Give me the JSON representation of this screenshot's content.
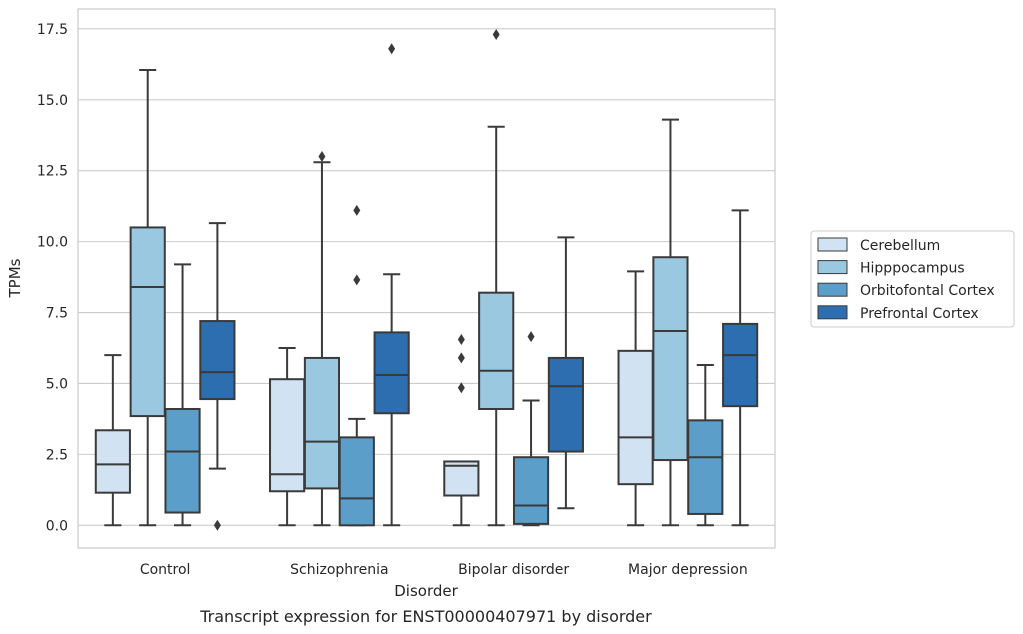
{
  "chart_data": {
    "type": "box",
    "xlabel": "Disorder",
    "ylabel": "TPMs",
    "caption": "Transcript expression for ENST00000407971 by disorder",
    "ylim": [
      -0.8,
      18.2
    ],
    "yticks": [
      "0.0",
      "2.5",
      "5.0",
      "7.5",
      "10.0",
      "12.5",
      "15.0",
      "17.5"
    ],
    "grid": "horizontal",
    "legend_position": "right",
    "categories": [
      "Control",
      "Schizophrenia",
      "Bipolar disorder",
      "Major depression"
    ],
    "series": [
      {
        "name": "Cerebellum",
        "color": "#d1e2f2",
        "boxes": [
          {
            "min": 0.0,
            "q1": 1.15,
            "median": 2.15,
            "q3": 3.35,
            "max": 6.0,
            "outliers": []
          },
          {
            "min": 0.0,
            "q1": 1.2,
            "median": 1.8,
            "q3": 5.15,
            "max": 6.25,
            "outliers": []
          },
          {
            "min": 0.0,
            "q1": 1.05,
            "median": 2.1,
            "q3": 2.25,
            "max": 2.25,
            "outliers": [
              4.85,
              5.9,
              6.55
            ]
          },
          {
            "min": 0.0,
            "q1": 1.45,
            "median": 3.1,
            "q3": 6.15,
            "max": 8.95,
            "outliers": []
          }
        ]
      },
      {
        "name": "Hipppocampus",
        "color": "#9ac8e0",
        "boxes": [
          {
            "min": 0.0,
            "q1": 3.85,
            "median": 8.4,
            "q3": 10.5,
            "max": 16.05,
            "outliers": []
          },
          {
            "min": 0.0,
            "q1": 1.3,
            "median": 2.95,
            "q3": 5.9,
            "max": 12.8,
            "outliers": [
              13.0
            ]
          },
          {
            "min": 0.0,
            "q1": 4.1,
            "median": 5.45,
            "q3": 8.2,
            "max": 14.05,
            "outliers": [
              17.3
            ]
          },
          {
            "min": 0.0,
            "q1": 2.3,
            "median": 6.85,
            "q3": 9.45,
            "max": 14.3,
            "outliers": []
          }
        ]
      },
      {
        "name": "Orbitofontal Cortex",
        "color": "#5a9ec9",
        "boxes": [
          {
            "min": 0.0,
            "q1": 0.45,
            "median": 2.6,
            "q3": 4.1,
            "max": 9.2,
            "outliers": []
          },
          {
            "min": 0.0,
            "q1": 0.0,
            "median": 0.95,
            "q3": 3.1,
            "max": 3.75,
            "outliers": [
              8.65,
              11.1
            ]
          },
          {
            "min": 0.0,
            "q1": 0.05,
            "median": 0.7,
            "q3": 2.4,
            "max": 4.4,
            "outliers": [
              6.65
            ]
          },
          {
            "min": 0.0,
            "q1": 0.4,
            "median": 2.4,
            "q3": 3.7,
            "max": 5.65,
            "outliers": []
          }
        ]
      },
      {
        "name": "Prefrontal Cortex",
        "color": "#2c6eaf",
        "boxes": [
          {
            "min": 2.0,
            "q1": 4.45,
            "median": 5.4,
            "q3": 7.2,
            "max": 10.65,
            "outliers": [
              0.0
            ]
          },
          {
            "min": 0.0,
            "q1": 3.95,
            "median": 5.3,
            "q3": 6.8,
            "max": 8.85,
            "outliers": [
              16.8
            ]
          },
          {
            "min": 0.6,
            "q1": 2.6,
            "median": 4.9,
            "q3": 5.9,
            "max": 10.15,
            "outliers": []
          },
          {
            "min": 0.0,
            "q1": 4.2,
            "median": 6.0,
            "q3": 7.1,
            "max": 11.1,
            "outliers": []
          }
        ]
      }
    ]
  }
}
